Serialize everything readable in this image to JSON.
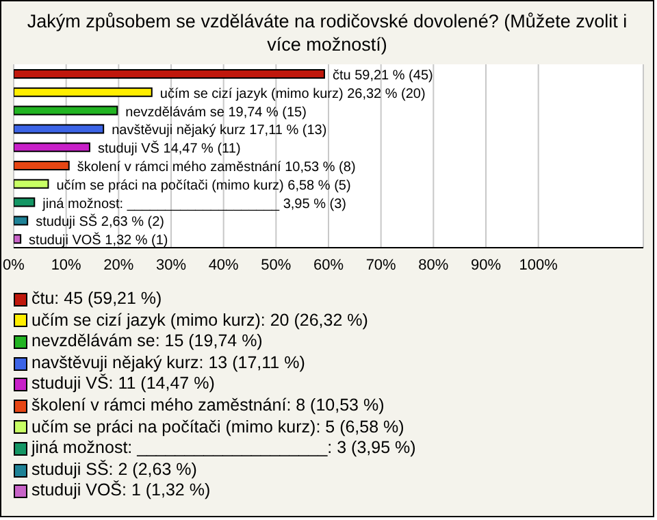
{
  "chart_data": {
    "type": "bar",
    "orientation": "horizontal",
    "title": "Jakým způsobem se vzděláváte na rodičovské dovolené? (Můžete zvolit i více možností)",
    "categories": [
      "čtu",
      "učím se cizí jazyk (mimo kurz)",
      "nevzdělávám se",
      "navštěvuji nějaký kurz",
      "studuji VŠ",
      "školení v rámci mého zaměstnání",
      "učím se práci na počítači (mimo kurz)",
      "jiná možnost: ____________________",
      "studuji SŠ",
      "studuji VOŠ"
    ],
    "values": [
      59.21,
      26.32,
      19.74,
      17.11,
      14.47,
      10.53,
      6.58,
      3.95,
      2.63,
      1.32
    ],
    "value_labels": [
      "59,21 % (45)",
      "26,32 % (20)",
      "19,74 % (15)",
      "17,11 % (13)",
      "14,47 % (11)",
      "10,53 % (8)",
      "6,58 % (5)",
      "3,95 % (3)",
      "2,63 % (2)",
      "1,32 % (1)"
    ],
    "colors": [
      "#c0180c",
      "#ffee00",
      "#22b422",
      "#3c64e6",
      "#c820c8",
      "#e64614",
      "#c8ff64",
      "#149664",
      "#1e8296",
      "#c864c8"
    ],
    "xlim": [
      0,
      120
    ],
    "xticks": [
      {
        "value": 0,
        "label": "0%"
      },
      {
        "value": 10,
        "label": "10%"
      },
      {
        "value": 20,
        "label": "20%"
      },
      {
        "value": 30,
        "label": "30%"
      },
      {
        "value": 40,
        "label": "40%"
      },
      {
        "value": 50,
        "label": "50%"
      },
      {
        "value": 60,
        "label": "60%"
      },
      {
        "value": 70,
        "label": "70%"
      },
      {
        "value": 80,
        "label": "80%"
      },
      {
        "value": 90,
        "label": "90%"
      },
      {
        "value": 100,
        "label": "100%"
      }
    ],
    "grid": "x",
    "tick_labels": "x",
    "annotations": [
      "čtu: 45 (59,21 %)",
      "učím se cizí jazyk (mimo kurz): 20 (26,32 %)",
      "nevzdělávám se: 15 (19,74 %)",
      "navštěvuji nějaký kurz: 13 (17,11 %)",
      "studuji VŠ: 11 (14,47 %)",
      "školení v rámci mého zaměstnání: 8 (10,53 %)",
      "učím se práci na počítači (mimo kurz): 5 (6,58 %)",
      "jiná možnost: ____________________: 3 (3,95 %)",
      "studuji SŠ: 2 (2,63 %)",
      "studuji VOŠ: 1 (1,32 %)"
    ]
  }
}
